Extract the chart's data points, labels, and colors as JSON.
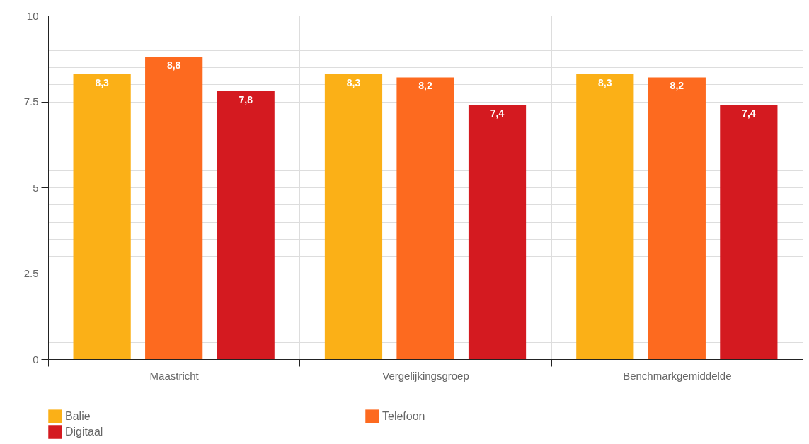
{
  "chart_data": {
    "type": "bar",
    "categories": [
      "Maastricht",
      "Vergelijkingsgroep",
      "Benchmarkgemiddelde"
    ],
    "series": [
      {
        "name": "Balie",
        "color": "#fbb017",
        "values": [
          8.3,
          8.3,
          8.3
        ],
        "value_labels": [
          "8,3",
          "8,3",
          "8,3"
        ]
      },
      {
        "name": "Telefoon",
        "color": "#fd6a1f",
        "values": [
          8.8,
          8.2,
          8.2
        ],
        "value_labels": [
          "8,8",
          "8,2",
          "8,2"
        ]
      },
      {
        "name": "Digitaal",
        "color": "#d41a20",
        "values": [
          7.8,
          7.4,
          7.4
        ],
        "value_labels": [
          "7,8",
          "7,4",
          "7,4"
        ]
      }
    ],
    "ylim": [
      0,
      10
    ],
    "yticks": [
      0,
      {
        "value": 0.5,
        "label": null
      },
      {
        "value": 1,
        "label": null
      },
      {
        "value": 1.5,
        "label": null
      },
      {
        "value": 2,
        "label": null
      },
      2.5,
      {
        "value": 3,
        "label": null
      },
      {
        "value": 3.5,
        "label": null
      },
      {
        "value": 4,
        "label": null
      },
      {
        "value": 4.5,
        "label": null
      },
      5,
      {
        "value": 5.5,
        "label": null
      },
      {
        "value": 6,
        "label": null
      },
      {
        "value": 6.5,
        "label": null
      },
      {
        "value": 7,
        "label": null
      },
      7.5,
      {
        "value": 8,
        "label": null
      },
      {
        "value": 8.5,
        "label": null
      },
      {
        "value": 9,
        "label": null
      },
      {
        "value": 9.5,
        "label": null
      },
      10
    ],
    "grid": true,
    "legend": "bottom"
  }
}
